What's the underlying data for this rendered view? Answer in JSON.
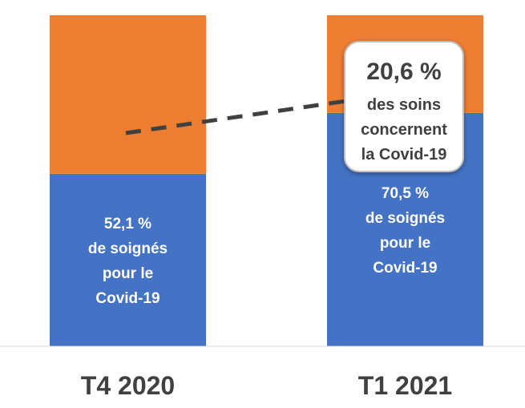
{
  "chart_data": {
    "type": "bar",
    "stacked": true,
    "categories": [
      "T4 2020",
      "T1 2021"
    ],
    "series": [
      {
        "values": [
          52.1,
          70.5
        ],
        "color": "#4472C4"
      },
      {
        "values": [
          47.9,
          29.5
        ],
        "color": "#ED7D31"
      }
    ],
    "ylim": [
      0,
      100
    ],
    "grid": false,
    "bar_labels": [
      [
        "52,1 %",
        "de soignés",
        "pour le",
        "Covid-19"
      ],
      [
        "70,5 %",
        "de soignés",
        "pour le",
        "Covid-19"
      ]
    ],
    "callout": {
      "lines": [
        "20,6 %",
        "des soins",
        "concernent",
        "la Covid-19"
      ],
      "connector": "dashed"
    }
  },
  "colors": {
    "text_dark": "#404040",
    "label_white": "#ffffff",
    "axis": "#d9d9d9",
    "callout_border": "#bfbfbf",
    "connector": "#404040"
  }
}
